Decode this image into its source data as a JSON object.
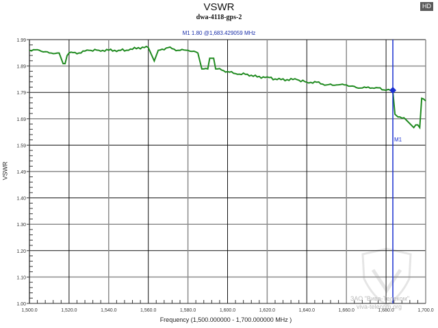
{
  "header": {
    "title": "VSWR",
    "subtitle": "dwa-4118-gps-2",
    "marker_readout": "M1   1.80 @1,683.429059 MHz",
    "badge": "HD"
  },
  "axes": {
    "ylabel": "VSWR",
    "xlabel": "Frequency (1,500.000000 - 1,700.000000 MHz )",
    "y_ticks": [
      "1.99",
      "1.89",
      "1.79",
      "1.69",
      "1.59",
      "1.49",
      "1.40",
      "1.30",
      "1.20",
      "1.10",
      "1.00"
    ],
    "x_ticks": [
      "1,500.0",
      "1,520.0",
      "1,540.0",
      "1,560.0",
      "1,580.0",
      "1,600.0",
      "1,620.0",
      "1,640.0",
      "1,660.0",
      "1,680.0",
      "1,700.0"
    ]
  },
  "marker": {
    "label": "M1",
    "color": "#1a2fd0"
  },
  "watermark": {
    "line1": "ЗАО \"Вива-Телеком\"",
    "line2": "viva-telecom.org"
  },
  "colors": {
    "trace": "#1f8a1f",
    "marker": "#1a2fd0",
    "grid_dark": "#111111",
    "grid_light": "#8c8c8c"
  },
  "chart_data": {
    "type": "line",
    "title": "VSWR",
    "subtitle": "dwa-4118-gps-2",
    "xlabel": "Frequency (1,500.000000 - 1,700.000000 MHz )",
    "ylabel": "VSWR",
    "xlim": [
      1500,
      1700
    ],
    "ylim": [
      1.0,
      1.99
    ],
    "grid": true,
    "series": [
      {
        "name": "VSWR",
        "x": [
          1500,
          1505,
          1510,
          1515,
          1517,
          1518,
          1519,
          1520,
          1525,
          1530,
          1535,
          1540,
          1545,
          1550,
          1555,
          1558,
          1560,
          1563,
          1565,
          1570,
          1575,
          1580,
          1585,
          1587,
          1588,
          1590,
          1591,
          1592,
          1593,
          1594,
          1595,
          1600,
          1605,
          1610,
          1615,
          1620,
          1625,
          1630,
          1635,
          1640,
          1645,
          1650,
          1655,
          1660,
          1665,
          1670,
          1675,
          1680,
          1683.4,
          1684.5,
          1686,
          1690,
          1694,
          1696,
          1697,
          1698,
          1700
        ],
        "y": [
          1.95,
          1.95,
          1.94,
          1.94,
          1.9,
          1.9,
          1.93,
          1.94,
          1.94,
          1.95,
          1.95,
          1.95,
          1.95,
          1.95,
          1.96,
          1.96,
          1.96,
          1.91,
          1.95,
          1.96,
          1.95,
          1.95,
          1.94,
          1.88,
          1.88,
          1.88,
          1.92,
          1.92,
          1.92,
          1.88,
          1.88,
          1.87,
          1.86,
          1.86,
          1.85,
          1.85,
          1.84,
          1.84,
          1.84,
          1.83,
          1.83,
          1.82,
          1.82,
          1.82,
          1.81,
          1.81,
          1.81,
          1.8,
          1.8,
          1.71,
          1.7,
          1.69,
          1.66,
          1.67,
          1.66,
          1.77,
          1.76
        ]
      }
    ],
    "markers": [
      {
        "name": "M1",
        "x": 1683.429059,
        "y": 1.8
      }
    ]
  }
}
